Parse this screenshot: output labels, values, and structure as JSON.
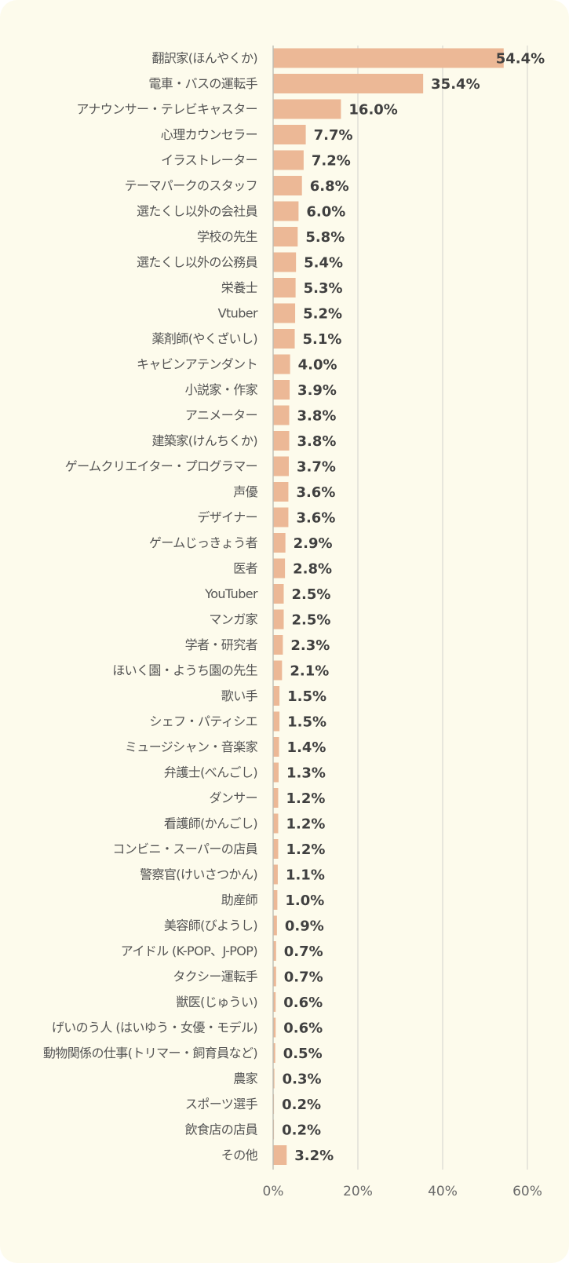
{
  "chart_data": {
    "type": "bar",
    "orientation": "horizontal",
    "categories": [
      "翻訳家(ほんやくか)",
      "電車・バスの運転手",
      "アナウンサー・テレビキャスター",
      "心理カウンセラー",
      "イラストレーター",
      "テーマパークのスタッフ",
      "選たくし以外の会社員",
      "学校の先生",
      "選たくし以外の公務員",
      "栄養士",
      "Vtuber",
      "薬剤師(やくざいし)",
      "キャビンアテンダント",
      "小説家・作家",
      "アニメーター",
      "建築家(けんちくか)",
      "ゲームクリエイター・プログラマー",
      "声優",
      "デザイナー",
      "ゲームじっきょう者",
      "医者",
      "YouTuber",
      "マンガ家",
      "学者・研究者",
      "ほいく園・ようち園の先生",
      "歌い手",
      "シェフ・パティシエ",
      "ミュージシャン・音楽家",
      "弁護士(べんごし)",
      "ダンサー",
      "看護師(かんごし)",
      "コンビニ・スーパーの店員",
      "警察官(けいさつかん)",
      "助産師",
      "美容師(びようし)",
      "アイドル (K-POP、J-POP)",
      "タクシー運転手",
      "獣医(じゅうい)",
      "げいのう人 (はいゆう・女優・モデル)",
      "動物関係の仕事(トリマー・飼育員など)",
      "農家",
      "スポーツ選手",
      "飲食店の店員",
      "その他"
    ],
    "values": [
      54.4,
      35.4,
      16.0,
      7.7,
      7.2,
      6.8,
      6.0,
      5.8,
      5.4,
      5.3,
      5.2,
      5.1,
      4.0,
      3.9,
      3.8,
      3.8,
      3.7,
      3.6,
      3.6,
      2.9,
      2.8,
      2.5,
      2.5,
      2.3,
      2.1,
      1.5,
      1.5,
      1.4,
      1.3,
      1.2,
      1.2,
      1.2,
      1.1,
      1.0,
      0.9,
      0.7,
      0.7,
      0.6,
      0.6,
      0.5,
      0.3,
      0.2,
      0.2,
      3.2
    ],
    "value_labels": [
      "54.4%",
      "35.4%",
      "16.0%",
      "7.7%",
      "7.2%",
      "6.8%",
      "6.0%",
      "5.8%",
      "5.4%",
      "5.3%",
      "5.2%",
      "5.1%",
      "4.0%",
      "3.9%",
      "3.8%",
      "3.8%",
      "3.7%",
      "3.6%",
      "3.6%",
      "2.9%",
      "2.8%",
      "2.5%",
      "2.5%",
      "2.3%",
      "2.1%",
      "1.5%",
      "1.5%",
      "1.4%",
      "1.3%",
      "1.2%",
      "1.2%",
      "1.2%",
      "1.1%",
      "1.0%",
      "0.9%",
      "0.7%",
      "0.7%",
      "0.6%",
      "0.6%",
      "0.5%",
      "0.3%",
      "0.2%",
      "0.2%",
      "3.2%"
    ],
    "xlim": [
      0,
      60
    ],
    "x_ticks": [
      0,
      20,
      40,
      60
    ],
    "x_tick_labels": [
      "0%",
      "20%",
      "40%",
      "60%"
    ],
    "title": "",
    "xlabel": "",
    "ylabel": "",
    "grid": "vertical",
    "legend": "none",
    "colors": {
      "bar": "#ecb896",
      "background": "#fdfbec",
      "grid": "#d9d9d2",
      "category_text": "#555555",
      "value_text": "#404040",
      "tick_text": "#6a6a6a"
    }
  }
}
